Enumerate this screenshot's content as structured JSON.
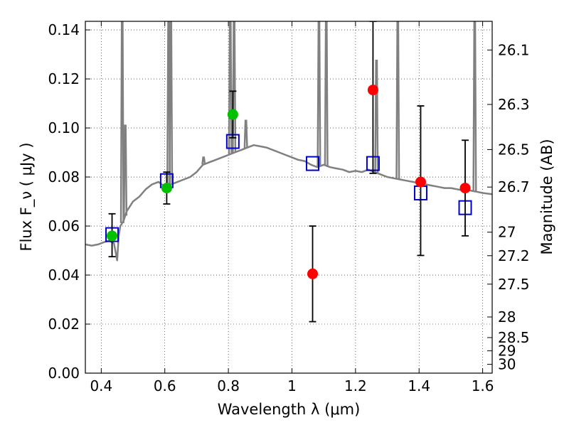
{
  "chart_data": {
    "type": "scatter",
    "title": "",
    "xlabel": "Wavelength  λ (μm)",
    "ylabel": "Flux  F_ν  ( μJy )",
    "ylabel_right": "Magnitude (AB)",
    "xlim": [
      0.35,
      1.63
    ],
    "ylim": [
      0.0,
      0.1435
    ],
    "grid": true,
    "legend": "none",
    "x_ticks": [
      0.4,
      0.6,
      0.8,
      1.0,
      1.2,
      1.4,
      1.6
    ],
    "x_tick_labels": [
      "0.4",
      "0.6",
      "0.8",
      "1",
      "1.2",
      "1.4",
      "1.6"
    ],
    "y_ticks": [
      0.0,
      0.02,
      0.04,
      0.06,
      0.08,
      0.1,
      0.12,
      0.14
    ],
    "y_tick_labels": [
      "0.00",
      "0.02",
      "0.04",
      "0.06",
      "0.08",
      "0.10",
      "0.12",
      "0.14"
    ],
    "right_axis_ticks": [
      {
        "label": "26.1",
        "flux": 0.1318
      },
      {
        "label": "26.3",
        "flux": 0.1096
      },
      {
        "label": "26.5",
        "flux": 0.0912
      },
      {
        "label": "26.7",
        "flux": 0.0759
      },
      {
        "label": "27",
        "flux": 0.0575
      },
      {
        "label": "27.2",
        "flux": 0.0479
      },
      {
        "label": "27.5",
        "flux": 0.0363
      },
      {
        "label": "28",
        "flux": 0.0229
      },
      {
        "label": "28.5",
        "flux": 0.0145
      },
      {
        "label": "29",
        "flux": 0.0091
      },
      {
        "label": "30",
        "flux": 0.0036
      }
    ],
    "colors": {
      "spectrum": "#808080",
      "green_points": "#00c000",
      "red_points": "#ff0000",
      "model_boxes": "#0000cc",
      "error_bars": "#000000"
    },
    "series": [
      {
        "kind": "spectrum",
        "points": [
          [
            0.35,
            0.0525
          ],
          [
            0.37,
            0.052
          ],
          [
            0.39,
            0.0525
          ],
          [
            0.41,
            0.0535
          ],
          [
            0.425,
            0.054
          ],
          [
            0.44,
            0.053
          ],
          [
            0.45,
            0.046
          ],
          [
            0.455,
            0.056
          ],
          [
            0.46,
            0.06
          ],
          [
            0.47,
            0.062
          ],
          [
            0.48,
            0.066
          ],
          [
            0.49,
            0.068
          ],
          [
            0.5,
            0.07
          ],
          [
            0.52,
            0.072
          ],
          [
            0.54,
            0.075
          ],
          [
            0.56,
            0.077
          ],
          [
            0.58,
            0.078
          ],
          [
            0.6,
            0.076
          ],
          [
            0.62,
            0.077
          ],
          [
            0.64,
            0.078
          ],
          [
            0.66,
            0.079
          ],
          [
            0.68,
            0.08
          ],
          [
            0.7,
            0.082
          ],
          [
            0.72,
            0.085
          ],
          [
            0.74,
            0.086
          ],
          [
            0.76,
            0.087
          ],
          [
            0.78,
            0.088
          ],
          [
            0.8,
            0.089
          ],
          [
            0.82,
            0.09
          ],
          [
            0.84,
            0.091
          ],
          [
            0.86,
            0.092
          ],
          [
            0.88,
            0.093
          ],
          [
            0.9,
            0.0925
          ],
          [
            0.92,
            0.092
          ],
          [
            0.94,
            0.091
          ],
          [
            0.96,
            0.09
          ],
          [
            0.98,
            0.089
          ],
          [
            1.0,
            0.088
          ],
          [
            1.02,
            0.087
          ],
          [
            1.04,
            0.0865
          ],
          [
            1.06,
            0.085
          ],
          [
            1.08,
            0.084
          ],
          [
            1.1,
            0.085
          ],
          [
            1.12,
            0.084
          ],
          [
            1.14,
            0.0835
          ],
          [
            1.16,
            0.083
          ],
          [
            1.18,
            0.082
          ],
          [
            1.2,
            0.0825
          ],
          [
            1.22,
            0.082
          ],
          [
            1.24,
            0.083
          ],
          [
            1.26,
            0.082
          ],
          [
            1.28,
            0.081
          ],
          [
            1.3,
            0.08
          ],
          [
            1.32,
            0.0795
          ],
          [
            1.34,
            0.079
          ],
          [
            1.36,
            0.0785
          ],
          [
            1.38,
            0.078
          ],
          [
            1.4,
            0.0775
          ],
          [
            1.42,
            0.077
          ],
          [
            1.44,
            0.0765
          ],
          [
            1.46,
            0.076
          ],
          [
            1.48,
            0.0755
          ],
          [
            1.5,
            0.0755
          ],
          [
            1.52,
            0.075
          ],
          [
            1.54,
            0.0745
          ],
          [
            1.56,
            0.0745
          ],
          [
            1.58,
            0.074
          ],
          [
            1.6,
            0.0735
          ],
          [
            1.63,
            0.073
          ]
        ]
      },
      {
        "kind": "emission_lines",
        "lines": [
          {
            "x": 0.466,
            "peak": 0.1435
          },
          {
            "x": 0.4755,
            "peak": 0.101
          },
          {
            "x": 0.612,
            "peak": 0.1435
          },
          {
            "x": 0.619,
            "peak": 0.1435
          },
          {
            "x": 0.722,
            "peak": 0.088
          },
          {
            "x": 0.806,
            "peak": 0.1435
          },
          {
            "x": 0.818,
            "peak": 0.1435
          },
          {
            "x": 0.855,
            "peak": 0.103
          },
          {
            "x": 1.085,
            "peak": 0.1435
          },
          {
            "x": 1.108,
            "peak": 0.1435
          },
          {
            "x": 1.266,
            "peak": 0.1275
          },
          {
            "x": 1.333,
            "peak": 0.1435
          },
          {
            "x": 1.575,
            "peak": 0.1435
          }
        ]
      },
      {
        "kind": "points_green",
        "points": [
          {
            "x": 0.434,
            "y": 0.056,
            "err_lo": 0.0085,
            "err_hi": 0.009
          },
          {
            "x": 0.606,
            "y": 0.0755,
            "err_lo": 0.0065,
            "err_hi": 0.0065
          },
          {
            "x": 0.814,
            "y": 0.1055,
            "err_lo": 0.0095,
            "err_hi": 0.0095
          }
        ]
      },
      {
        "kind": "points_red",
        "points": [
          {
            "x": 1.065,
            "y": 0.0405,
            "err_lo": 0.0195,
            "err_hi": 0.0195
          },
          {
            "x": 1.255,
            "y": 0.1155,
            "err_lo": 0.034,
            "err_hi": 0.028
          },
          {
            "x": 1.405,
            "y": 0.078,
            "err_lo": 0.03,
            "err_hi": 0.031
          },
          {
            "x": 1.545,
            "y": 0.0755,
            "err_lo": 0.0195,
            "err_hi": 0.0195
          }
        ]
      },
      {
        "kind": "model_boxes",
        "points": [
          {
            "x": 0.434,
            "y": 0.0565
          },
          {
            "x": 0.606,
            "y": 0.0785
          },
          {
            "x": 0.814,
            "y": 0.0945
          },
          {
            "x": 1.065,
            "y": 0.0855
          },
          {
            "x": 1.255,
            "y": 0.0855
          },
          {
            "x": 1.405,
            "y": 0.0735
          },
          {
            "x": 1.545,
            "y": 0.0675
          }
        ]
      }
    ]
  }
}
